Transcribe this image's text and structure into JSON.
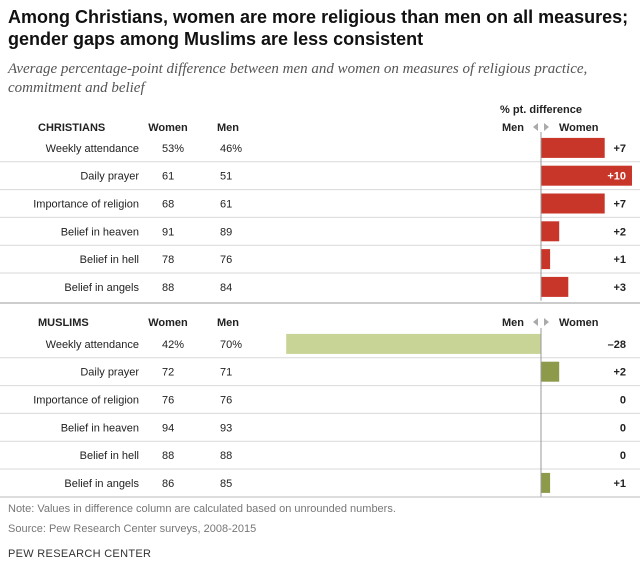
{
  "title_line1": "Among Christians, women are more religious than men on all measures;",
  "title_line2": "gender gaps among Muslims are less consistent",
  "subtitle_line1": "Average percentage-point difference between men and women on measures of religious practice,",
  "subtitle_line2": "commitment and belief",
  "diff_column_header": "% pt. difference",
  "note": "Note: Values in difference column are calculated based on unrounded numbers.",
  "source": "Source: Pew Research Center surveys, 2008-2015",
  "org": "PEW RESEARCH CENTER",
  "colors": {
    "christians_bar": "#c8362a",
    "muslims_bar_negative": "#c8d496",
    "muslims_bar_positive": "#8c9a4a"
  },
  "chart_data": [
    {
      "type": "bar",
      "group": "CHRISTIANS",
      "col_women": "Women",
      "col_men": "Men",
      "direction_men": "Men",
      "direction_women": "Women",
      "rows": [
        {
          "label": "Weekly attendance",
          "women": "53%",
          "men": "46%",
          "diff": 7,
          "diff_label": "+7"
        },
        {
          "label": "Daily prayer",
          "women": "61",
          "men": "51",
          "diff": 10,
          "diff_label": "+10"
        },
        {
          "label": "Importance of religion",
          "women": "68",
          "men": "61",
          "diff": 7,
          "diff_label": "+7"
        },
        {
          "label": "Belief in heaven",
          "women": "91",
          "men": "89",
          "diff": 2,
          "diff_label": "+2"
        },
        {
          "label": "Belief in hell",
          "women": "78",
          "men": "76",
          "diff": 1,
          "diff_label": "+1"
        },
        {
          "label": "Belief in angels",
          "women": "88",
          "men": "84",
          "diff": 3,
          "diff_label": "+3"
        }
      ]
    },
    {
      "type": "bar",
      "group": "MUSLIMS",
      "col_women": "Women",
      "col_men": "Men",
      "direction_men": "Men",
      "direction_women": "Women",
      "rows": [
        {
          "label": "Weekly attendance",
          "women": "42%",
          "men": "70%",
          "diff": -28,
          "diff_label": "–28"
        },
        {
          "label": "Daily prayer",
          "women": "72",
          "men": "71",
          "diff": 2,
          "diff_label": "+2"
        },
        {
          "label": "Importance of religion",
          "women": "76",
          "men": "76",
          "diff": 0,
          "diff_label": "0"
        },
        {
          "label": "Belief in heaven",
          "women": "94",
          "men": "93",
          "diff": 0,
          "diff_label": "0"
        },
        {
          "label": "Belief in hell",
          "women": "88",
          "men": "88",
          "diff": 0,
          "diff_label": "0"
        },
        {
          "label": "Belief in angels",
          "women": "86",
          "men": "85",
          "diff": 1,
          "diff_label": "+1"
        }
      ]
    }
  ]
}
